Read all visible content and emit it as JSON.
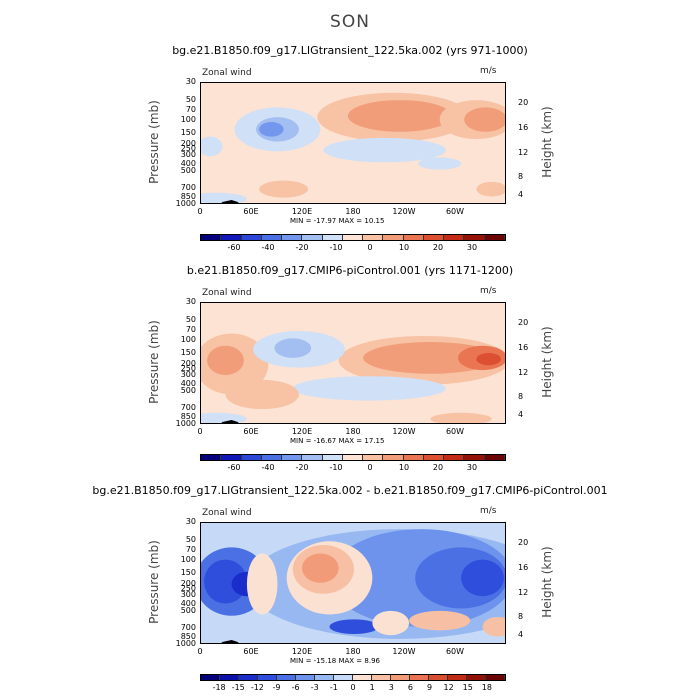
{
  "main_title": "SON",
  "chart_data": [
    {
      "type": "heatmap",
      "title": "bg.e21.B1850.f09_g17.LIGtransient_122.5ka.002 (yrs 971-1000)",
      "corner_left": "Zonal wind",
      "corner_right": "m/s",
      "ylabel": "Pressure (mb)",
      "ylabel_right": "Height (km)",
      "yticks": [
        "30",
        "50",
        "70",
        "100",
        "150",
        "200",
        "250",
        "300",
        "400",
        "500",
        "700",
        "850",
        "1000"
      ],
      "yticks_right": [
        "20",
        "16",
        "12",
        "8",
        "4"
      ],
      "xticks": [
        "0",
        "60E",
        "120E",
        "180",
        "120W",
        "60W"
      ],
      "minmax": "MIN = -17.97   MAX =  10.15",
      "colorbar_labels": [
        "-60",
        "-40",
        "-20",
        "-10",
        "0",
        "10",
        "20",
        "30"
      ],
      "colors": [
        "#04007a",
        "#1018b8",
        "#2c46d8",
        "#4a70e4",
        "#7397ec",
        "#a3bff2",
        "#cfe0f7",
        "#fce3d3",
        "#f8c2a5",
        "#f29d79",
        "#ea7553",
        "#dc4f31",
        "#c32b17",
        "#951208",
        "#6b0404"
      ],
      "range": [
        -18,
        10.15
      ]
    },
    {
      "type": "heatmap",
      "title": "b.e21.B1850.f09_g17.CMIP6-piControl.001 (yrs 1171-1200)",
      "corner_left": "Zonal wind",
      "corner_right": "m/s",
      "ylabel": "Pressure (mb)",
      "ylabel_right": "Height (km)",
      "yticks": [
        "30",
        "50",
        "70",
        "100",
        "150",
        "200",
        "250",
        "300",
        "400",
        "500",
        "700",
        "850",
        "1000"
      ],
      "yticks_right": [
        "20",
        "16",
        "12",
        "8",
        "4"
      ],
      "xticks": [
        "0",
        "60E",
        "120E",
        "180",
        "120W",
        "60W"
      ],
      "minmax": "MIN = -16.67   MAX =  17.15",
      "colorbar_labels": [
        "-60",
        "-40",
        "-20",
        "-10",
        "0",
        "10",
        "20",
        "30"
      ],
      "colors": [
        "#04007a",
        "#1018b8",
        "#2c46d8",
        "#4a70e4",
        "#7397ec",
        "#a3bff2",
        "#cfe0f7",
        "#fce3d3",
        "#f8c2a5",
        "#f29d79",
        "#ea7553",
        "#dc4f31",
        "#c32b17",
        "#951208",
        "#6b0404"
      ],
      "range": [
        -16.67,
        17.15
      ]
    },
    {
      "type": "heatmap",
      "title": "bg.e21.B1850.f09_g17.LIGtransient_122.5ka.002 - b.e21.B1850.f09_g17.CMIP6-piControl.001",
      "corner_left": "Zonal wind",
      "corner_right": "m/s",
      "ylabel": "Pressure (mb)",
      "ylabel_right": "Height (km)",
      "yticks": [
        "30",
        "50",
        "70",
        "100",
        "150",
        "200",
        "250",
        "300",
        "400",
        "500",
        "700",
        "850",
        "1000"
      ],
      "yticks_right": [
        "20",
        "16",
        "12",
        "8",
        "4"
      ],
      "xticks": [
        "0",
        "60E",
        "120E",
        "180",
        "120W",
        "60W"
      ],
      "minmax": "MIN = -15.18   MAX =   8.96",
      "colorbar_labels": [
        "-18",
        "-15",
        "-12",
        "-9",
        "-6",
        "-3",
        "-1",
        "0",
        "1",
        "3",
        "6",
        "9",
        "12",
        "15",
        "18"
      ],
      "colors": [
        "#04007a",
        "#0a10a8",
        "#1a2dca",
        "#2f4edc",
        "#4a70e4",
        "#6d93ec",
        "#98b8f2",
        "#c6daf7",
        "#fbe1d1",
        "#f7c0a4",
        "#f29b78",
        "#e97352",
        "#da4e30",
        "#c02b16",
        "#921107",
        "#6a0404"
      ],
      "range": [
        -15.18,
        8.96
      ]
    }
  ]
}
